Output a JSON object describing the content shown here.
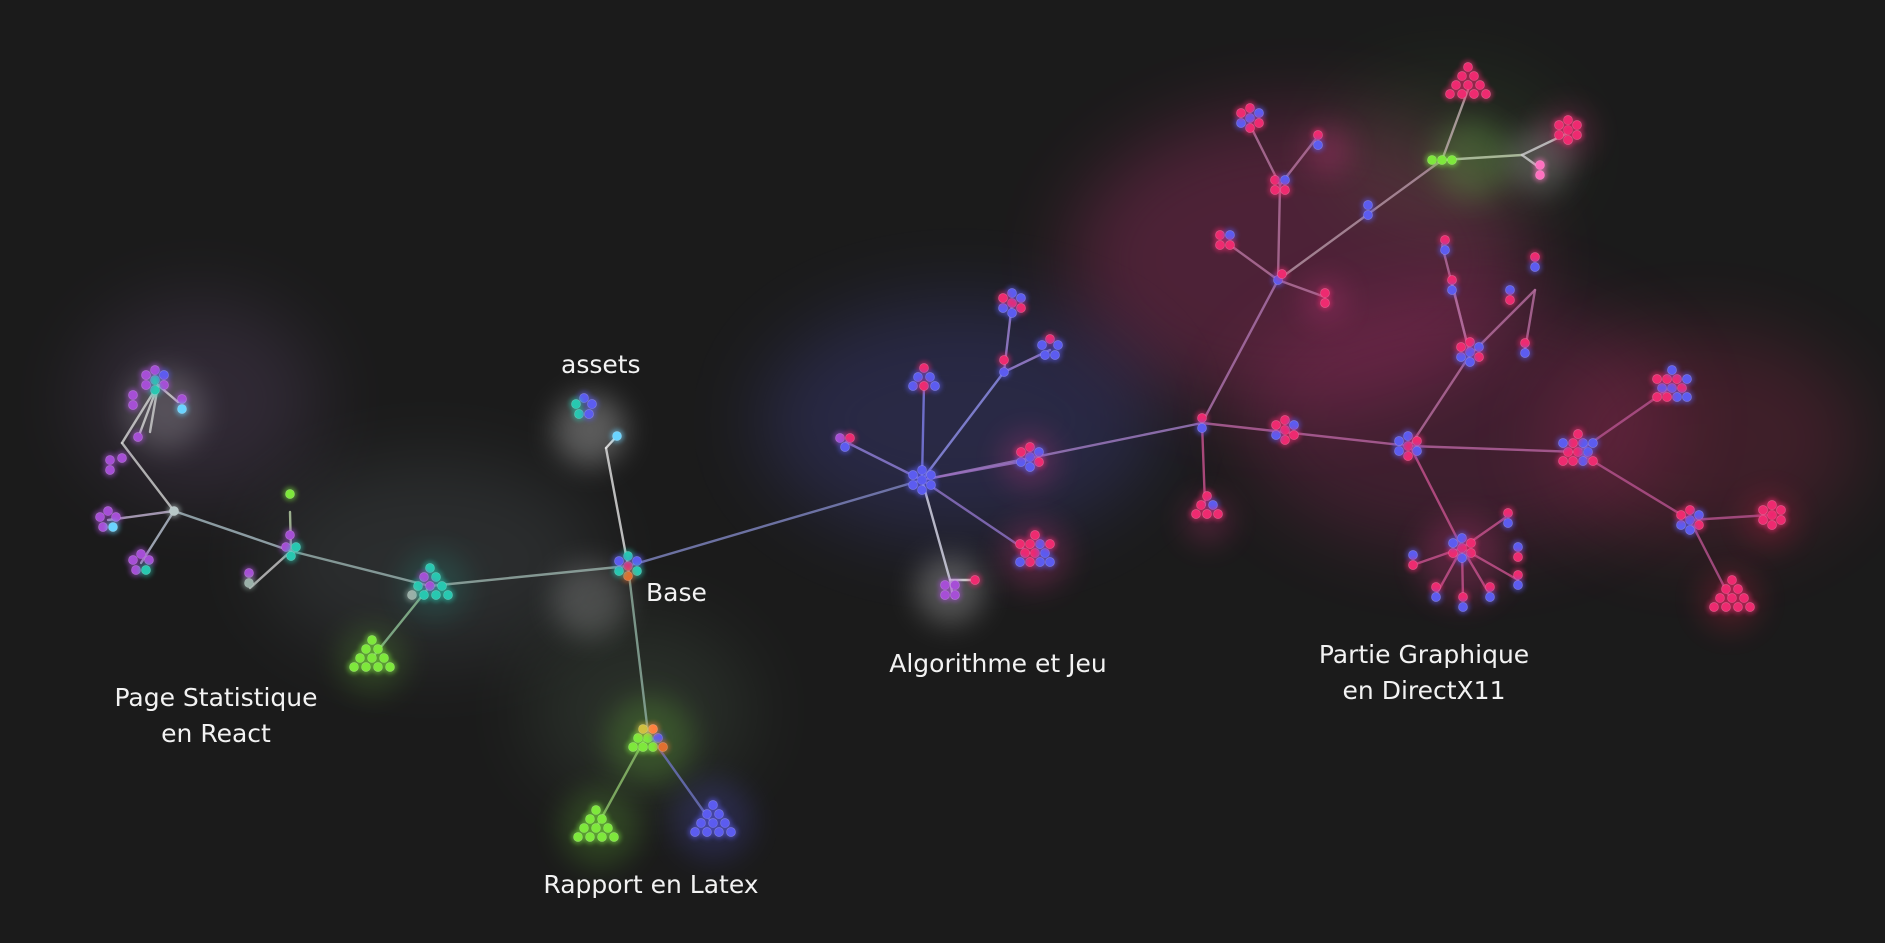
{
  "labels": {
    "assets": "assets",
    "base": "Base",
    "react_line1": "Page Statistique",
    "react_line2": "en React",
    "latex": "Rapport en Latex",
    "algo": "Algorithme et Jeu",
    "dx_line1": "Partie Graphique",
    "dx_line2": "en DirectX11"
  },
  "colors": {
    "background": "#1b1b1b",
    "magenta": "#ee2b70",
    "indigo": "#5c5cf0",
    "violet": "#a64fd6",
    "teal": "#28c8b0",
    "lime": "#7ee83c",
    "sky": "#6ad4ff"
  }
}
